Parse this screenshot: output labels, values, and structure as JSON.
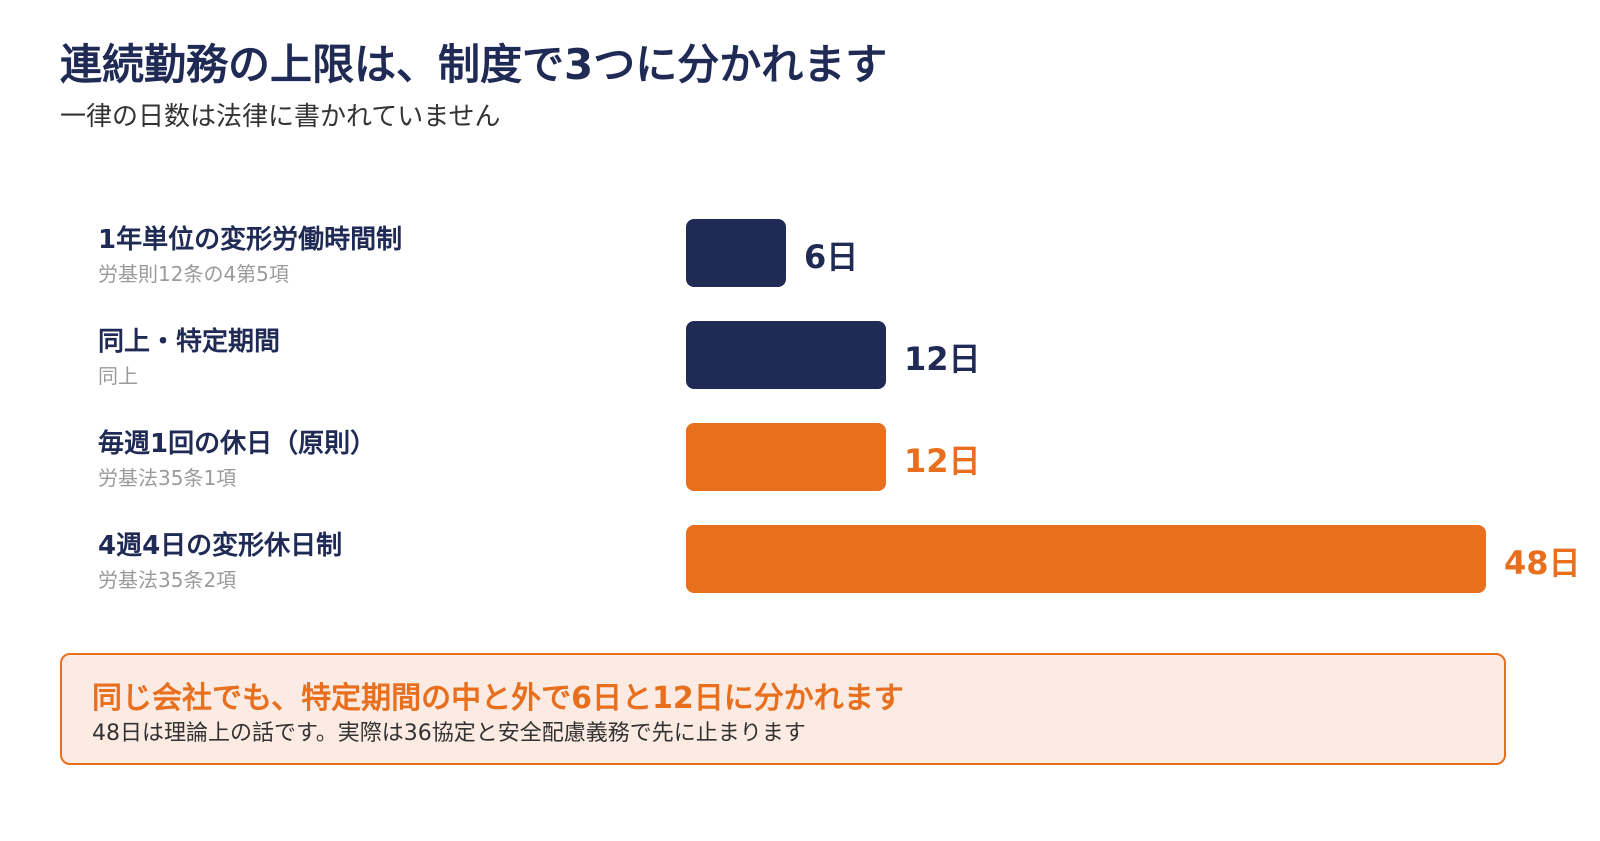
{
  "header": {
    "title": "連続勤務の上限は、制度で3つに分かれます",
    "subtitle": "一律の日数は法律に書かれていません"
  },
  "colors": {
    "navy": "#1f2a55",
    "orange": "#e86f1e",
    "callout_bg": "#fcebe2",
    "muted": "#9a9a9a"
  },
  "chart_data": {
    "type": "bar",
    "orientation": "horizontal",
    "categories": [
      "1年単位の変形労働時間制",
      "同上・特定期間",
      "毎週1回の休日（原則）",
      "4週4日の変形休日制"
    ],
    "subcategories": [
      "労基則12条の4第5項",
      "同上",
      "労基法35条1項",
      "労基法35条2項"
    ],
    "values": [
      6,
      12,
      12,
      48
    ],
    "value_labels": [
      "6日",
      "12日",
      "12日",
      "48日"
    ],
    "bar_colors": [
      "#1f2a55",
      "#1f2a55",
      "#e86f1e",
      "#e86f1e"
    ],
    "xlim": [
      0,
      48
    ],
    "grid": false,
    "legend": "none"
  },
  "callout": {
    "headline": "同じ会社でも、特定期間の中と外で6日と12日に分かれます",
    "note": "48日は理論上の話です。実際は36協定と安全配慮義務で先に止まります"
  }
}
